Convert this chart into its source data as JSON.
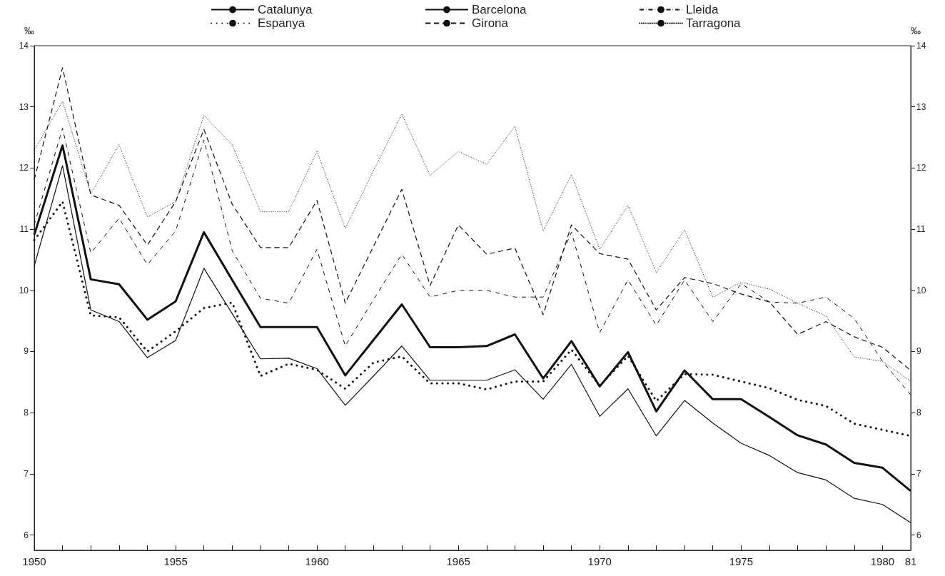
{
  "chart_data": {
    "type": "line",
    "ylabel": "‰",
    "y2label": "‰",
    "x": [
      1950,
      1951,
      1952,
      1953,
      1954,
      1955,
      1956,
      1957,
      1958,
      1959,
      1960,
      1961,
      1962,
      1963,
      1964,
      1965,
      1966,
      1967,
      1968,
      1969,
      1970,
      1971,
      1972,
      1973,
      1974,
      1975,
      1976,
      1977,
      1978,
      1979,
      1980,
      1981
    ],
    "xlim": [
      1950,
      1981
    ],
    "xticks": [
      1950,
      {
        "value": 1951,
        "label": null
      },
      {
        "value": 1952,
        "label": null
      },
      {
        "value": 1953,
        "label": null
      },
      {
        "value": 1954,
        "label": null
      },
      1955,
      {
        "value": 1956,
        "label": null
      },
      {
        "value": 1957,
        "label": null
      },
      {
        "value": 1958,
        "label": null
      },
      {
        "value": 1959,
        "label": null
      },
      1960,
      {
        "value": 1961,
        "label": null
      },
      {
        "value": 1962,
        "label": null
      },
      {
        "value": 1963,
        "label": null
      },
      {
        "value": 1964,
        "label": null
      },
      1965,
      {
        "value": 1966,
        "label": null
      },
      {
        "value": 1967,
        "label": null
      },
      {
        "value": 1968,
        "label": null
      },
      {
        "value": 1969,
        "label": null
      },
      1970,
      {
        "value": 1971,
        "label": null
      },
      {
        "value": 1972,
        "label": null
      },
      {
        "value": 1973,
        "label": null
      },
      {
        "value": 1974,
        "label": null
      },
      1975,
      {
        "value": 1976,
        "label": null
      },
      {
        "value": 1977,
        "label": null
      },
      {
        "value": 1978,
        "label": null
      },
      {
        "value": 1979,
        "label": null
      },
      1980,
      {
        "value": 1981,
        "label": "81"
      }
    ],
    "ylim": [
      5.75,
      14
    ],
    "yticks": [
      6,
      7,
      8,
      9,
      10,
      11,
      12,
      13,
      14
    ],
    "y2lim": [
      5.75,
      14
    ],
    "y2ticks": [
      6,
      7,
      8,
      9,
      10,
      11,
      12,
      13,
      14
    ],
    "grid": false,
    "legend": "top",
    "marker": "none",
    "series": [
      {
        "name": "Catalunya",
        "color": "#111111",
        "line_style": "solid",
        "values": [
          10.91,
          12.37,
          10.18,
          10.1,
          9.52,
          9.82,
          10.95,
          10.17,
          9.4,
          9.4,
          9.4,
          8.61,
          9.19,
          9.77,
          9.07,
          9.07,
          9.09,
          9.28,
          8.56,
          9.17,
          8.43,
          8.99,
          8.02,
          8.69,
          8.22,
          8.22,
          7.93,
          7.63,
          7.48,
          7.18,
          7.1,
          6.72
        ]
      },
      {
        "name": "Espanya",
        "color": "#111111",
        "line_style": "dotted",
        "values": [
          10.82,
          11.45,
          9.59,
          9.56,
          9.0,
          9.33,
          9.71,
          9.8,
          8.6,
          8.8,
          8.7,
          8.39,
          8.82,
          8.92,
          8.48,
          8.48,
          8.38,
          8.51,
          8.51,
          9.03,
          8.44,
          8.93,
          8.19,
          8.63,
          8.62,
          8.51,
          8.4,
          8.21,
          8.11,
          7.82,
          7.72,
          7.62
        ]
      },
      {
        "name": "Barcelona",
        "color": "#111111",
        "line_style": "solid",
        "values": [
          10.4,
          12.04,
          9.68,
          9.49,
          8.9,
          9.18,
          10.36,
          9.62,
          8.88,
          8.89,
          8.72,
          8.12,
          8.6,
          9.09,
          8.53,
          8.53,
          8.53,
          8.7,
          8.22,
          8.79,
          7.94,
          8.39,
          7.62,
          8.2,
          7.83,
          7.5,
          7.3,
          7.02,
          6.9,
          6.6,
          6.5,
          6.2
        ]
      },
      {
        "name": "Girona",
        "color": "#111111",
        "line_style": "dashed",
        "values": [
          11.81,
          13.64,
          11.56,
          11.39,
          10.74,
          11.45,
          12.63,
          11.41,
          10.7,
          10.7,
          11.47,
          9.79,
          10.72,
          11.65,
          10.08,
          11.07,
          10.59,
          10.69,
          9.6,
          11.07,
          10.6,
          10.51,
          9.68,
          10.21,
          10.11,
          9.94,
          9.81,
          9.28,
          9.49,
          9.24,
          9.07,
          8.69
        ]
      },
      {
        "name": "Lleida",
        "color": "#111111",
        "line_style": "dashdot",
        "values": [
          11.07,
          12.65,
          10.61,
          11.18,
          10.42,
          10.97,
          12.46,
          10.65,
          9.87,
          9.79,
          10.67,
          9.09,
          9.85,
          10.59,
          9.89,
          10.0,
          10.0,
          9.89,
          9.89,
          10.95,
          9.31,
          10.17,
          9.43,
          10.17,
          9.49,
          10.11,
          9.81,
          9.79,
          9.89,
          9.54,
          8.84,
          8.29
        ]
      },
      {
        "name": "Tarragona",
        "color": "#111111",
        "line_style": "dotted",
        "values": [
          12.29,
          13.09,
          11.58,
          12.38,
          11.2,
          11.45,
          12.86,
          12.38,
          11.29,
          11.29,
          12.27,
          11.01,
          11.96,
          12.88,
          11.88,
          12.27,
          12.06,
          12.68,
          10.97,
          11.89,
          10.67,
          11.39,
          10.29,
          10.99,
          9.89,
          10.13,
          10.02,
          9.79,
          9.58,
          8.91,
          8.84,
          8.51
        ]
      }
    ]
  }
}
